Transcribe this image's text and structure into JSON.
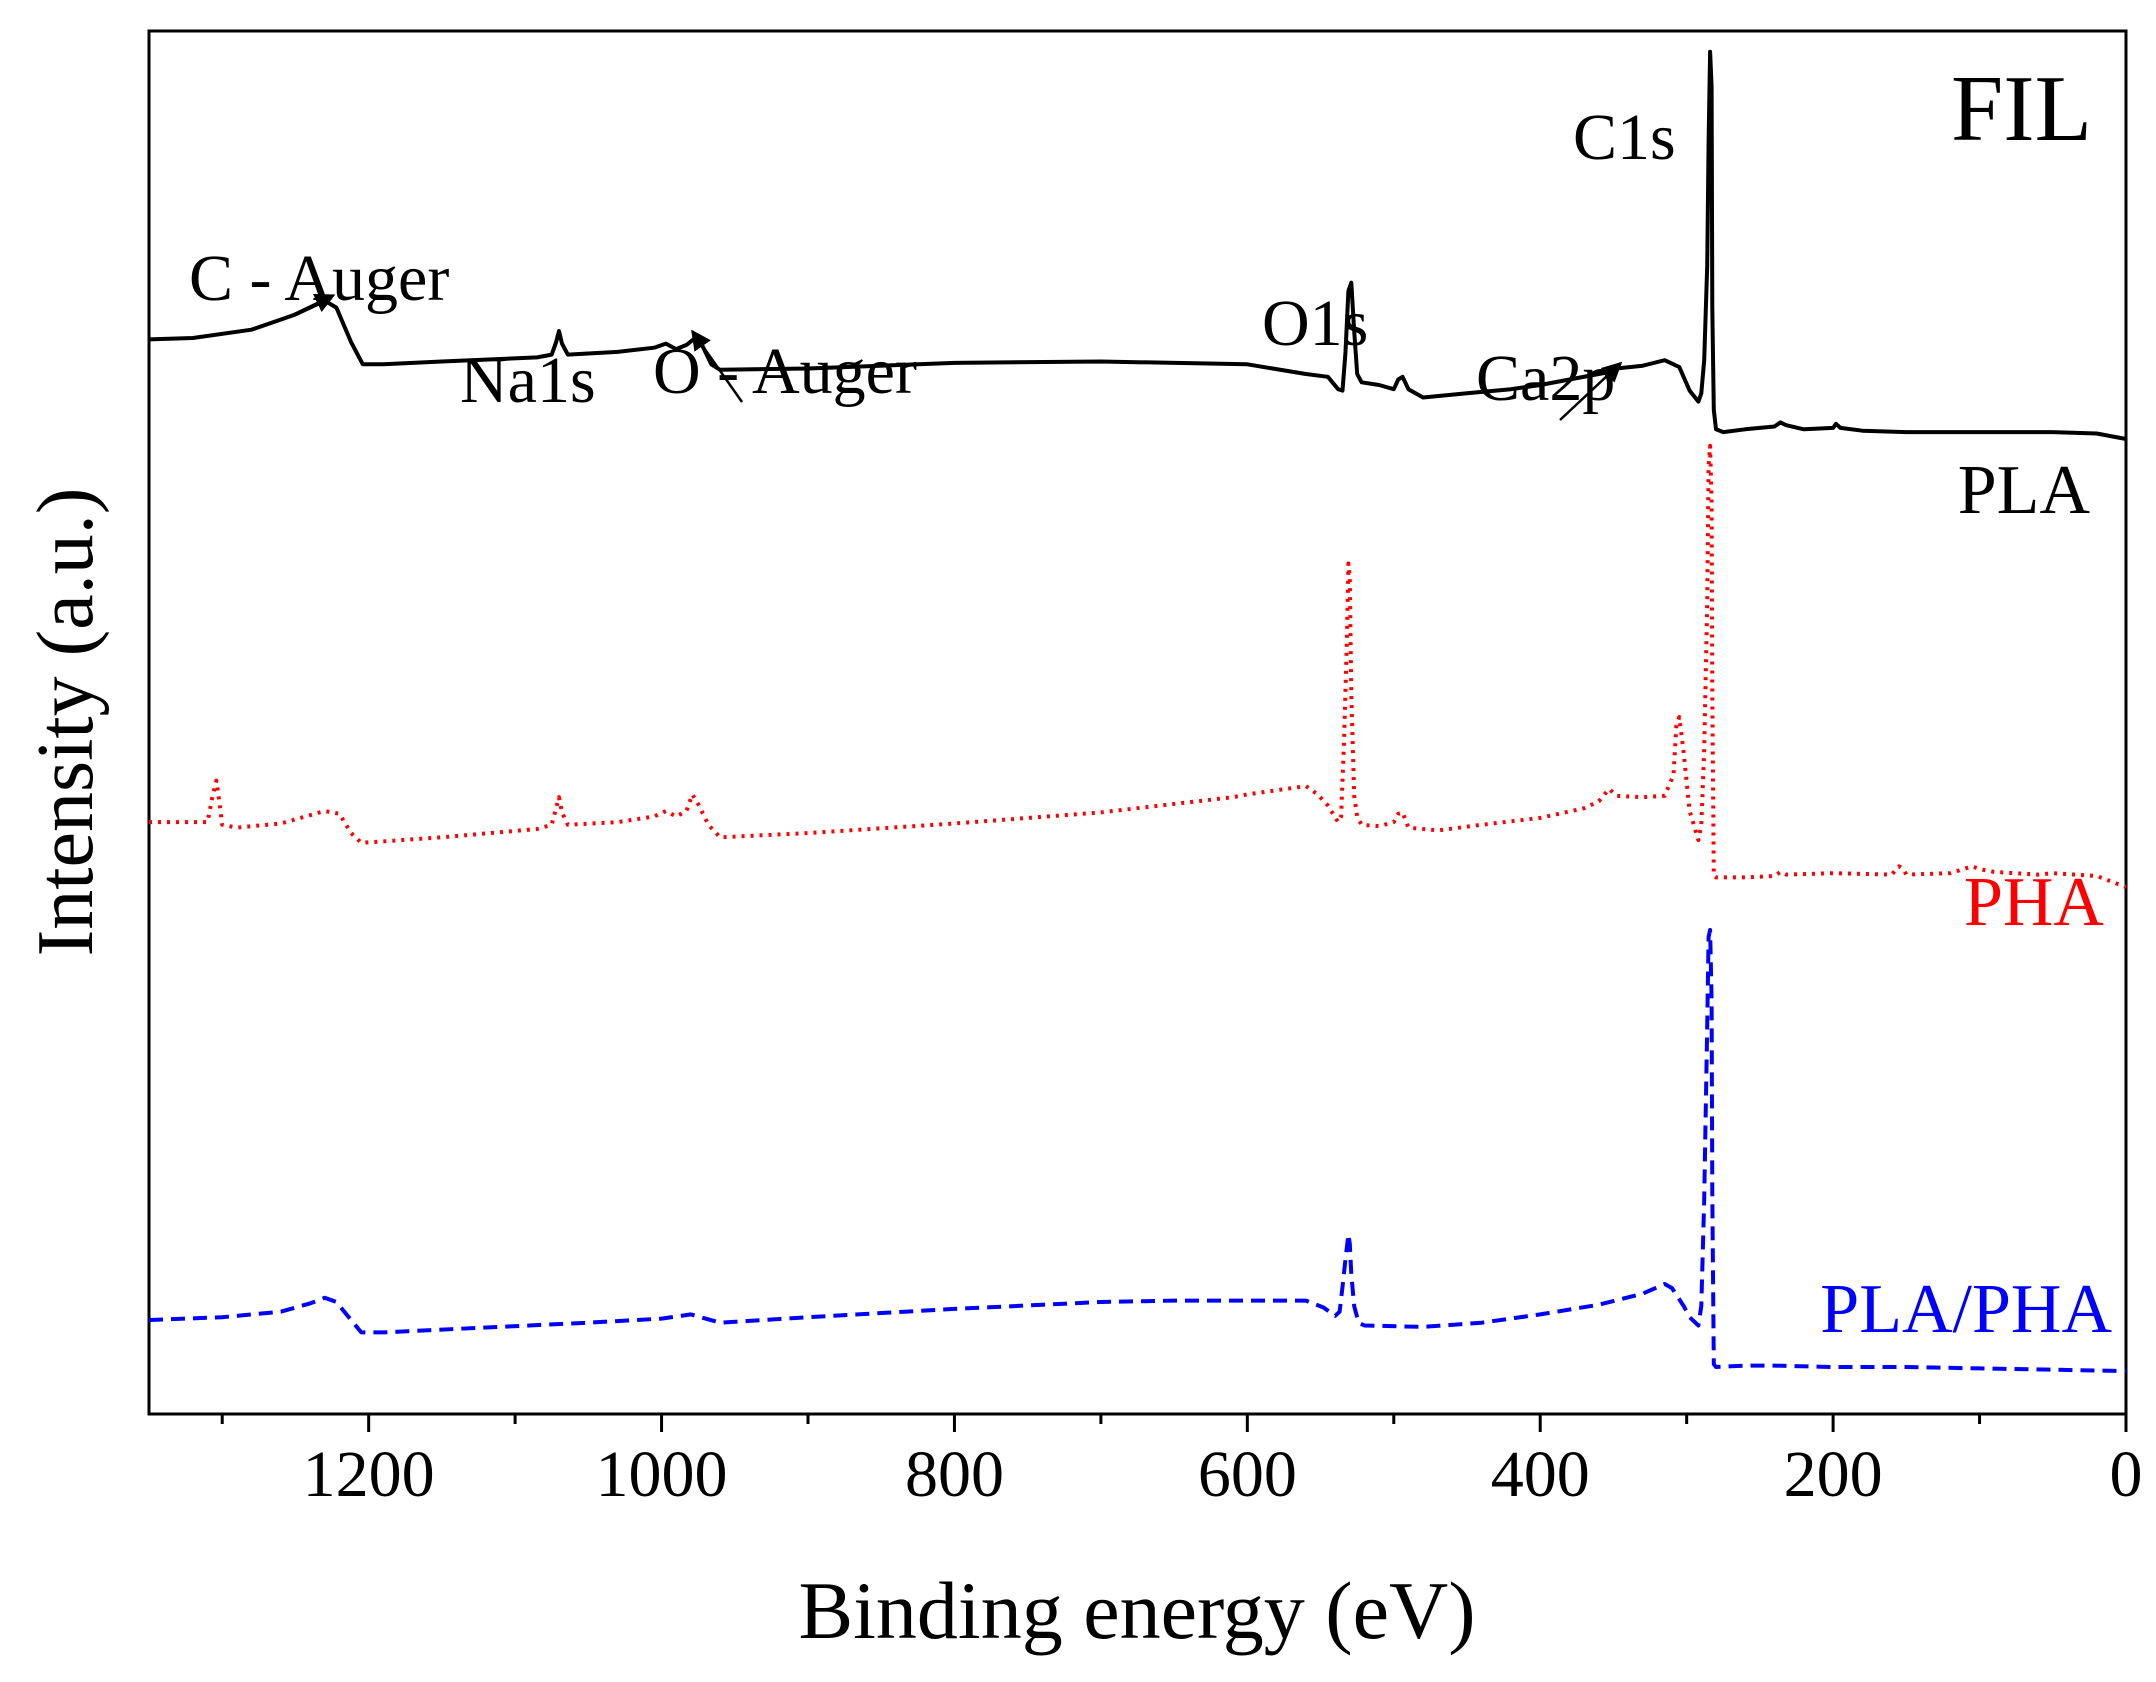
{
  "chart_data": {
    "type": "line",
    "title": "FIL",
    "xlabel": "Binding energy (eV)",
    "ylabel": "Intensity (a.u.)",
    "xlim": [
      1350,
      0
    ],
    "ylim": [
      0,
      100
    ],
    "x_ticks": [
      1200,
      1000,
      800,
      600,
      400,
      200,
      0
    ],
    "x_tick_labels": [
      "1200",
      "1000",
      "800",
      "600",
      "400",
      "200",
      "0"
    ],
    "x_minor_ticks": [
      1300,
      1100,
      900,
      700,
      500,
      300,
      100
    ],
    "series": [
      {
        "name": "PLA",
        "color": "#000000",
        "dash": "solid",
        "points": [
          [
            1350,
            77.7
          ],
          [
            1320,
            77.8
          ],
          [
            1280,
            78.4
          ],
          [
            1250,
            79.5
          ],
          [
            1230,
            80.5
          ],
          [
            1222,
            80.0
          ],
          [
            1212,
            77.5
          ],
          [
            1204,
            75.9
          ],
          [
            1190,
            75.9
          ],
          [
            1150,
            76.1
          ],
          [
            1085,
            76.4
          ],
          [
            1075,
            76.6
          ],
          [
            1072,
            77.5
          ],
          [
            1070,
            78.3
          ],
          [
            1068,
            77.4
          ],
          [
            1064,
            76.6
          ],
          [
            1030,
            76.8
          ],
          [
            1005,
            77.1
          ],
          [
            997,
            77.4
          ],
          [
            990,
            77.0
          ],
          [
            983,
            77.3
          ],
          [
            977,
            77.8
          ],
          [
            972,
            77.2
          ],
          [
            966,
            75.9
          ],
          [
            960,
            75.5
          ],
          [
            900,
            75.6
          ],
          [
            800,
            76.0
          ],
          [
            700,
            76.1
          ],
          [
            600,
            75.9
          ],
          [
            560,
            75.2
          ],
          [
            545,
            75.0
          ],
          [
            538,
            74.1
          ],
          [
            535,
            74.0
          ],
          [
            533,
            76.8
          ],
          [
            531,
            81.2
          ],
          [
            529,
            81.8
          ],
          [
            527,
            78.3
          ],
          [
            525,
            75.2
          ],
          [
            522,
            74.6
          ],
          [
            510,
            74.4
          ],
          [
            500,
            74.1
          ],
          [
            497,
            74.8
          ],
          [
            494,
            75.0
          ],
          [
            490,
            74.1
          ],
          [
            480,
            73.5
          ],
          [
            450,
            73.8
          ],
          [
            420,
            74.1
          ],
          [
            400,
            74.4
          ],
          [
            380,
            74.8
          ],
          [
            355,
            75.3
          ],
          [
            348,
            75.6
          ],
          [
            330,
            75.8
          ],
          [
            315,
            76.2
          ],
          [
            305,
            75.7
          ],
          [
            298,
            74.0
          ],
          [
            292,
            73.2
          ],
          [
            290,
            73.8
          ],
          [
            288,
            76.2
          ],
          [
            286,
            83.0
          ],
          [
            285,
            92.0
          ],
          [
            284,
            98.5
          ],
          [
            283,
            96.0
          ],
          [
            282.5,
            80.0
          ],
          [
            281.5,
            72.6
          ],
          [
            280,
            71.2
          ],
          [
            275,
            71.0
          ],
          [
            260,
            71.2
          ],
          [
            240,
            71.4
          ],
          [
            236,
            71.7
          ],
          [
            232,
            71.5
          ],
          [
            220,
            71.2
          ],
          [
            200,
            71.3
          ],
          [
            198,
            71.6
          ],
          [
            195,
            71.3
          ],
          [
            180,
            71.1
          ],
          [
            150,
            71.0
          ],
          [
            100,
            71.0
          ],
          [
            50,
            71.0
          ],
          [
            20,
            70.9
          ],
          [
            0,
            70.5
          ]
        ]
      },
      {
        "name": "PHA",
        "color": "#ff0000",
        "dash": "dotted",
        "points": [
          [
            1350,
            42.8
          ],
          [
            1310,
            42.8
          ],
          [
            1307,
            44.5
          ],
          [
            1304,
            45.8
          ],
          [
            1302,
            44.3
          ],
          [
            1300,
            42.6
          ],
          [
            1290,
            42.4
          ],
          [
            1260,
            42.7
          ],
          [
            1230,
            43.6
          ],
          [
            1220,
            43.4
          ],
          [
            1212,
            42.0
          ],
          [
            1205,
            41.3
          ],
          [
            1190,
            41.4
          ],
          [
            1150,
            41.7
          ],
          [
            1085,
            42.3
          ],
          [
            1075,
            42.6
          ],
          [
            1072,
            43.8
          ],
          [
            1070,
            44.6
          ],
          [
            1068,
            43.5
          ],
          [
            1064,
            42.6
          ],
          [
            1030,
            42.8
          ],
          [
            1005,
            43.2
          ],
          [
            997,
            43.6
          ],
          [
            990,
            43.2
          ],
          [
            983,
            43.6
          ],
          [
            979,
            44.8
          ],
          [
            975,
            44.1
          ],
          [
            968,
            42.6
          ],
          [
            960,
            41.7
          ],
          [
            900,
            42.0
          ],
          [
            800,
            42.7
          ],
          [
            700,
            43.5
          ],
          [
            610,
            44.6
          ],
          [
            600,
            44.8
          ],
          [
            560,
            45.4
          ],
          [
            552,
            44.8
          ],
          [
            545,
            44.0
          ],
          [
            538,
            42.8
          ],
          [
            536,
            43.2
          ],
          [
            534,
            48.5
          ],
          [
            532,
            56.0
          ],
          [
            531,
            61.5
          ],
          [
            530,
            60.4
          ],
          [
            529,
            52.0
          ],
          [
            527,
            44.7
          ],
          [
            525,
            43.2
          ],
          [
            522,
            42.6
          ],
          [
            510,
            42.5
          ],
          [
            500,
            42.8
          ],
          [
            497,
            43.4
          ],
          [
            494,
            43.5
          ],
          [
            490,
            42.4
          ],
          [
            470,
            42.2
          ],
          [
            440,
            42.6
          ],
          [
            400,
            43.1
          ],
          [
            370,
            43.8
          ],
          [
            360,
            44.3
          ],
          [
            353,
            45.2
          ],
          [
            348,
            44.7
          ],
          [
            330,
            44.6
          ],
          [
            315,
            44.7
          ],
          [
            309,
            46.2
          ],
          [
            307,
            49.8
          ],
          [
            305,
            50.4
          ],
          [
            302,
            47.8
          ],
          [
            298,
            43.6
          ],
          [
            292,
            41.5
          ],
          [
            290,
            42.6
          ],
          [
            288,
            48.0
          ],
          [
            286,
            58.5
          ],
          [
            285,
            68.5
          ],
          [
            284,
            70.0
          ],
          [
            283,
            66.0
          ],
          [
            282.5,
            52.0
          ],
          [
            281.5,
            38.9
          ],
          [
            280,
            38.8
          ],
          [
            260,
            38.8
          ],
          [
            240,
            38.9
          ],
          [
            236,
            39.2
          ],
          [
            232,
            39.0
          ],
          [
            200,
            39.1
          ],
          [
            160,
            39.0
          ],
          [
            155,
            39.6
          ],
          [
            152,
            39.4
          ],
          [
            150,
            39.0
          ],
          [
            120,
            39.1
          ],
          [
            105,
            39.6
          ],
          [
            100,
            39.4
          ],
          [
            90,
            39.2
          ],
          [
            60,
            39.0
          ],
          [
            50,
            39.1
          ],
          [
            20,
            38.9
          ],
          [
            0,
            38.1
          ]
        ]
      },
      {
        "name": "PLA/PHA",
        "color": "#0000ff",
        "dash": "dashed",
        "points": [
          [
            1350,
            6.8
          ],
          [
            1300,
            7.0
          ],
          [
            1260,
            7.4
          ],
          [
            1240,
            8.0
          ],
          [
            1230,
            8.4
          ],
          [
            1222,
            8.1
          ],
          [
            1212,
            6.8
          ],
          [
            1205,
            5.9
          ],
          [
            1190,
            5.9
          ],
          [
            1150,
            6.1
          ],
          [
            1050,
            6.6
          ],
          [
            1000,
            6.9
          ],
          [
            980,
            7.2
          ],
          [
            970,
            6.9
          ],
          [
            960,
            6.6
          ],
          [
            900,
            7.0
          ],
          [
            800,
            7.6
          ],
          [
            700,
            8.1
          ],
          [
            650,
            8.2
          ],
          [
            600,
            8.2
          ],
          [
            560,
            8.2
          ],
          [
            548,
            7.7
          ],
          [
            540,
            7.1
          ],
          [
            537,
            7.4
          ],
          [
            535,
            9.2
          ],
          [
            533,
            11.2
          ],
          [
            531,
            13.0
          ],
          [
            530,
            12.3
          ],
          [
            529,
            10.1
          ],
          [
            527,
            7.8
          ],
          [
            524,
            6.6
          ],
          [
            520,
            6.4
          ],
          [
            480,
            6.3
          ],
          [
            440,
            6.6
          ],
          [
            400,
            7.2
          ],
          [
            360,
            7.9
          ],
          [
            330,
            8.7
          ],
          [
            315,
            9.4
          ],
          [
            310,
            9.1
          ],
          [
            302,
            7.8
          ],
          [
            298,
            7.0
          ],
          [
            292,
            6.4
          ],
          [
            290,
            7.8
          ],
          [
            288,
            15.5
          ],
          [
            286,
            28.0
          ],
          [
            285,
            34.5
          ],
          [
            284,
            35.0
          ],
          [
            283,
            30.0
          ],
          [
            282.5,
            16.0
          ],
          [
            281.5,
            3.6
          ],
          [
            280,
            3.4
          ],
          [
            260,
            3.5
          ],
          [
            240,
            3.5
          ],
          [
            200,
            3.4
          ],
          [
            150,
            3.4
          ],
          [
            100,
            3.3
          ],
          [
            50,
            3.2
          ],
          [
            0,
            3.1
          ]
        ]
      }
    ],
    "series_labels": [
      "PLA",
      "PHA",
      "PLA/PHA"
    ],
    "annotations": {
      "c1s": "C1s",
      "o1s": "O1s",
      "ca2p": "Ca2p",
      "na1s": "Na1s",
      "o_auger": "O - Auger",
      "c_auger": "C - Auger"
    },
    "annotation_targets": {
      "c_auger": [
        1224,
        80.6
      ],
      "o_auger": [
        979,
        78.0
      ],
      "ca2p": [
        345,
        75.7
      ]
    }
  }
}
